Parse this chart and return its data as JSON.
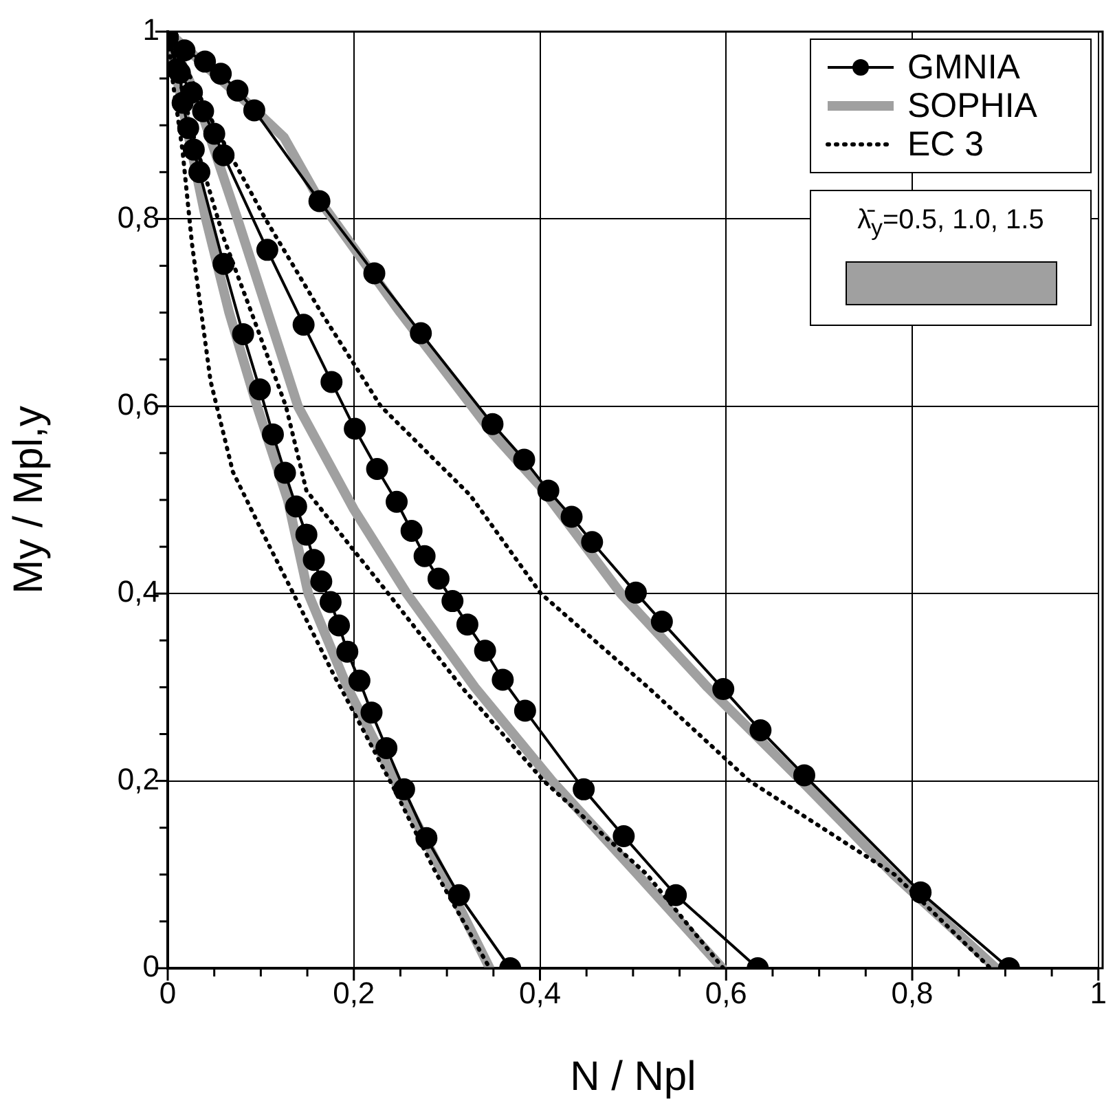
{
  "chart_data": {
    "type": "line",
    "xlabel": "N / Npl",
    "ylabel": "My / Mpl,y",
    "xlim": [
      0,
      1
    ],
    "ylim": [
      0,
      1
    ],
    "xticks": [
      0,
      {
        "value": 0.05,
        "label": null
      },
      {
        "value": 0.1,
        "label": null
      },
      {
        "value": 0.15,
        "label": null
      },
      {
        "value": 0.2,
        "label": "0,2"
      },
      {
        "value": 0.25,
        "label": null
      },
      {
        "value": 0.3,
        "label": null
      },
      {
        "value": 0.35,
        "label": null
      },
      {
        "value": 0.4,
        "label": "0,4"
      },
      {
        "value": 0.45,
        "label": null
      },
      {
        "value": 0.5,
        "label": null
      },
      {
        "value": 0.55,
        "label": null
      },
      {
        "value": 0.6,
        "label": "0,6"
      },
      {
        "value": 0.65,
        "label": null
      },
      {
        "value": 0.7,
        "label": null
      },
      {
        "value": 0.75,
        "label": null
      },
      {
        "value": 0.8,
        "label": "0,8"
      },
      {
        "value": 0.85,
        "label": null
      },
      {
        "value": 0.9,
        "label": null
      },
      {
        "value": 0.95,
        "label": null
      },
      1
    ],
    "yticks": [
      0,
      {
        "value": 0.05,
        "label": null
      },
      {
        "value": 0.1,
        "label": null
      },
      {
        "value": 0.15,
        "label": null
      },
      {
        "value": 0.2,
        "label": "0,2"
      },
      {
        "value": 0.25,
        "label": null
      },
      {
        "value": 0.3,
        "label": null
      },
      {
        "value": 0.35,
        "label": null
      },
      {
        "value": 0.4,
        "label": "0,4"
      },
      {
        "value": 0.45,
        "label": null
      },
      {
        "value": 0.5,
        "label": null
      },
      {
        "value": 0.55,
        "label": null
      },
      {
        "value": 0.6,
        "label": "0,6"
      },
      {
        "value": 0.65,
        "label": null
      },
      {
        "value": 0.7,
        "label": null
      },
      {
        "value": 0.75,
        "label": null
      },
      {
        "value": 0.8,
        "label": "0,8"
      },
      {
        "value": 0.85,
        "label": null
      },
      {
        "value": 0.9,
        "label": null
      },
      {
        "value": 0.95,
        "label": null
      },
      1
    ],
    "grid": true,
    "legend": "top right",
    "annotations": [
      "λ̄$_{y}$=0.5, 1.0, 1.5"
    ],
    "series": [
      {
        "name": "GMNIA",
        "color": "#000000",
        "marker": "circle",
        "line_style": "solid",
        "x": [
          0,
          0.018,
          0.04,
          0.057,
          0.075,
          0.093,
          0.163,
          0.222,
          0.272,
          0.349,
          0.383,
          0.409,
          0.434,
          0.456,
          0.503,
          0.531,
          0.597,
          0.637,
          0.684,
          0.809,
          0.904
        ],
        "values": [
          0.994,
          0.98,
          0.968,
          0.955,
          0.937,
          0.916,
          0.819,
          0.742,
          0.678,
          0.581,
          0.543,
          0.51,
          0.482,
          0.455,
          0.401,
          0.37,
          0.298,
          0.254,
          0.206,
          0.081,
          0
        ]
      },
      {
        "name": "SOPHIA",
        "color": "#a0a0a0",
        "marker": "none",
        "line_style": "solid",
        "x": [
          0,
          0.05,
          0.09,
          0.125,
          0.163,
          0.25,
          0.35,
          0.4,
          0.487,
          0.58,
          0.681,
          0.78,
          0.89
        ],
        "values": [
          1,
          0.955,
          0.92,
          0.887,
          0.82,
          0.7,
          0.57,
          0.515,
          0.4,
          0.3,
          0.2,
          0.1,
          0
        ]
      },
      {
        "name": "EC 3",
        "color": "#000000",
        "marker": "none",
        "line_style": "dotted",
        "x": [
          0,
          0.05,
          0.105,
          0.165,
          0.229,
          0.325,
          0.401,
          0.516,
          0.625,
          0.781,
          0.884
        ],
        "values": [
          1,
          0.9,
          0.8,
          0.7,
          0.6,
          0.505,
          0.4,
          0.3,
          0.2,
          0.1,
          0
        ]
      },
      {
        "color": "#000000",
        "marker": "circle",
        "line_style": "solid",
        "x": [
          0,
          0.01,
          0.026,
          0.038,
          0.05,
          0.06,
          0.107,
          0.146,
          0.176,
          0.201,
          0.225,
          0.246,
          0.262,
          0.276,
          0.291,
          0.306,
          0.322,
          0.341,
          0.36,
          0.384,
          0.447,
          0.49,
          0.546,
          0.634
        ],
        "values": [
          0.994,
          0.96,
          0.935,
          0.915,
          0.891,
          0.868,
          0.767,
          0.687,
          0.626,
          0.576,
          0.533,
          0.498,
          0.467,
          0.44,
          0.416,
          0.392,
          0.367,
          0.339,
          0.308,
          0.275,
          0.191,
          0.141,
          0.078,
          0
        ]
      },
      {
        "color": "#000000",
        "marker": "circle",
        "line_style": "solid",
        "x": [
          0,
          0.013,
          0.016,
          0.022,
          0.028,
          0.034,
          0.06,
          0.081,
          0.099,
          0.113,
          0.126,
          0.138,
          0.149,
          0.157,
          0.165,
          0.175,
          0.184,
          0.193,
          0.206,
          0.219,
          0.235,
          0.254,
          0.278,
          0.313,
          0.368
        ],
        "values": [
          0.994,
          0.956,
          0.924,
          0.897,
          0.874,
          0.85,
          0.752,
          0.677,
          0.618,
          0.57,
          0.529,
          0.493,
          0.463,
          0.436,
          0.413,
          0.391,
          0.366,
          0.338,
          0.307,
          0.273,
          0.235,
          0.191,
          0.139,
          0.078,
          0
        ]
      },
      {
        "color": "#a0a0a0",
        "marker": "none",
        "line_style": "solid",
        "x": [
          0,
          0.031,
          0.075,
          0.14,
          0.2,
          0.257,
          0.33,
          0.413,
          0.505,
          0.596
        ],
        "values": [
          1,
          0.93,
          0.8,
          0.6,
          0.49,
          0.4,
          0.3,
          0.2,
          0.1,
          0
        ]
      },
      {
        "color": "#a0a0a0",
        "marker": "none",
        "line_style": "solid",
        "x": [
          0,
          0.02,
          0.041,
          0.066,
          0.096,
          0.129,
          0.151,
          0.193,
          0.244,
          0.296,
          0.346
        ],
        "values": [
          1,
          0.9,
          0.8,
          0.7,
          0.6,
          0.5,
          0.4,
          0.3,
          0.2,
          0.1,
          0
        ]
      },
      {
        "color": "#000000",
        "marker": "none",
        "line_style": "dotted",
        "x": [
          0,
          0.03,
          0.06,
          0.09,
          0.127,
          0.149,
          0.2,
          0.237,
          0.316,
          0.404,
          0.515,
          0.597
        ],
        "values": [
          1,
          0.88,
          0.78,
          0.7,
          0.6,
          0.51,
          0.446,
          0.4,
          0.3,
          0.2,
          0.1,
          0
        ]
      },
      {
        "color": "#000000",
        "marker": "none",
        "line_style": "dotted",
        "x": [
          0,
          0.005,
          0.016,
          0.026,
          0.046,
          0.07,
          0.104,
          0.134,
          0.178,
          0.207,
          0.243,
          0.287,
          0.346
        ],
        "values": [
          1,
          0.95,
          0.872,
          0.774,
          0.627,
          0.53,
          0.461,
          0.402,
          0.314,
          0.26,
          0.192,
          0.104,
          0
        ]
      }
    ]
  }
}
